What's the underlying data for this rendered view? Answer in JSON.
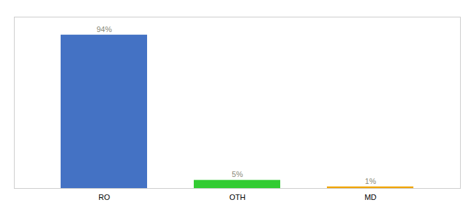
{
  "chart_data": {
    "type": "bar",
    "categories": [
      "RO",
      "OTH",
      "MD"
    ],
    "values": [
      94,
      5,
      1
    ],
    "value_labels": [
      "94%",
      "5%",
      "1%"
    ],
    "colors": [
      "#4472C4",
      "#33CC33",
      "#F0A500"
    ],
    "ylim": [
      0,
      105
    ],
    "data_labels": true,
    "tick_labels": "x",
    "grid": false
  }
}
